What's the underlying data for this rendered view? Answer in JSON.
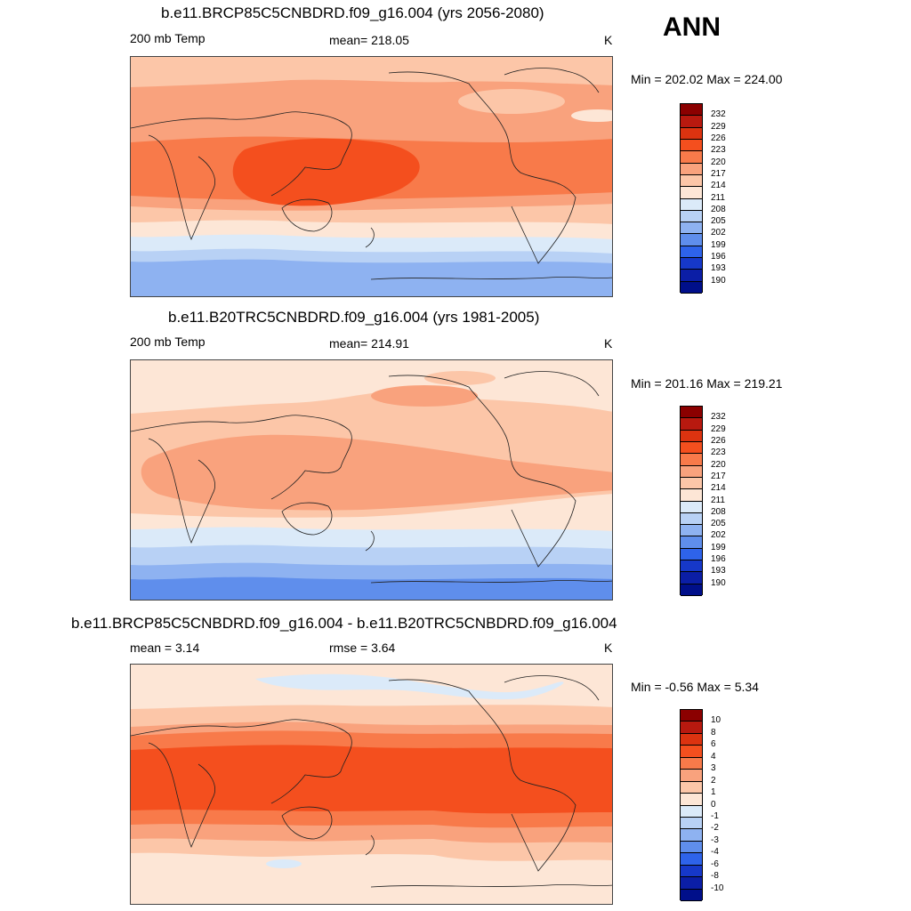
{
  "season": "ANN",
  "units": "K",
  "panels": [
    {
      "title": "b.e11.BRCP85C5CNBDRD.f09_g16.004 (yrs 2056-2080)",
      "left_label": "200 mb Temp",
      "stat_label": "mean= 218.05",
      "units": "K",
      "minmax": "Min = 202.02 Max = 224.00",
      "colorbar_labels": [
        "232",
        "229",
        "226",
        "223",
        "220",
        "217",
        "214",
        "211",
        "208",
        "205",
        "202",
        "199",
        "196",
        "193",
        "190"
      ]
    },
    {
      "title": "b.e11.B20TRC5CNBDRD.f09_g16.004 (yrs 1981-2005)",
      "left_label": "200 mb Temp",
      "stat_label": "mean= 214.91",
      "units": "K",
      "minmax": "Min = 201.16 Max = 219.21",
      "colorbar_labels": [
        "232",
        "229",
        "226",
        "223",
        "220",
        "217",
        "214",
        "211",
        "208",
        "205",
        "202",
        "199",
        "196",
        "193",
        "190"
      ]
    },
    {
      "title": "b.e11.BRCP85C5CNBDRD.f09_g16.004 - b.e11.B20TRC5CNBDRD.f09_g16.004",
      "left_label": "mean =   3.14",
      "stat_label": "rmse =   3.64",
      "units": "K",
      "minmax": "Min =  -0.56 Max =   5.34",
      "colorbar_labels": [
        "10",
        "8",
        "6",
        "4",
        "3",
        "2",
        "1",
        "0",
        "-1",
        "-2",
        "-3",
        "-4",
        "-6",
        "-8",
        "-10"
      ]
    }
  ],
  "colorbar_colors": [
    "#8b0000",
    "#b8190f",
    "#dc3310",
    "#f44f1e",
    "#f87a4a",
    "#f9a27d",
    "#fcc6a8",
    "#fde6d6",
    "#dbeaf9",
    "#b8d1f5",
    "#8eb2f1",
    "#5f8eec",
    "#2e63ea",
    "#1638c9",
    "#0b1ea6",
    "#000f8a"
  ],
  "map_palette": {
    "lt_blue": "#dbeaf9",
    "blue1": "#b8d1f5",
    "blue2": "#8eb2f1",
    "blue3": "#5f8eec",
    "cream": "#fde6d6",
    "peach": "#fcc6a8",
    "salmon": "#f9a27d",
    "orange": "#f87a4a",
    "red": "#f44f1e"
  }
}
